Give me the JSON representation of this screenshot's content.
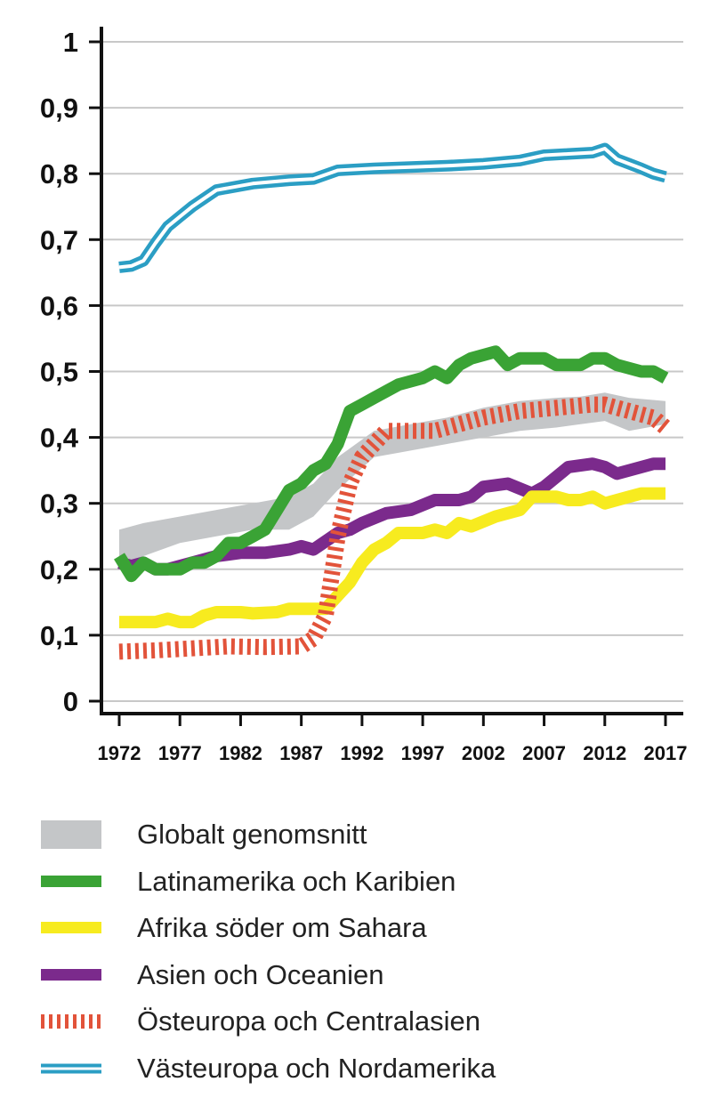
{
  "chart_data": {
    "type": "line",
    "title": "",
    "xlabel": "",
    "ylabel": "",
    "xlim": [
      1972,
      2017
    ],
    "ylim": [
      0,
      1
    ],
    "grid": "horizontal",
    "legend_position": "bottom",
    "y_ticks": [
      "0",
      "0,1",
      "0,2",
      "0,3",
      "0,4",
      "0,5",
      "0,6",
      "0,7",
      "0,8",
      "0,9",
      "1"
    ],
    "x_ticks": [
      "1972",
      "1977",
      "1982",
      "1987",
      "1992",
      "1997",
      "2002",
      "2007",
      "2012",
      "2017"
    ],
    "colors": {
      "global": "#c4c6c8",
      "latin": "#3aa335",
      "africa": "#f7eb1f",
      "asia": "#7b2a8c",
      "east": "#e2533a",
      "west": "#2b9ec4"
    },
    "band": {
      "name": "Globalt genomsnitt",
      "x": [
        1972,
        1974,
        1977,
        1980,
        1983,
        1986,
        1988,
        1990,
        1993,
        1996,
        1999,
        2002,
        2005,
        2008,
        2010,
        2012,
        2014,
        2017
      ],
      "lower": [
        0.2,
        0.22,
        0.24,
        0.25,
        0.26,
        0.26,
        0.28,
        0.32,
        0.37,
        0.38,
        0.39,
        0.4,
        0.41,
        0.415,
        0.42,
        0.425,
        0.41,
        0.42
      ],
      "upper": [
        0.26,
        0.27,
        0.28,
        0.29,
        0.3,
        0.31,
        0.33,
        0.37,
        0.41,
        0.42,
        0.43,
        0.445,
        0.455,
        0.46,
        0.462,
        0.468,
        0.46,
        0.455
      ]
    },
    "series": [
      {
        "name": "Latinamerika och Karibien",
        "style": "solid-thick",
        "x": [
          1972,
          1973,
          1974,
          1975,
          1977,
          1978,
          1979,
          1980,
          1981,
          1982,
          1983,
          1984,
          1985,
          1986,
          1987,
          1988,
          1989,
          1990,
          1991,
          1992,
          1993,
          1994,
          1995,
          1997,
          1998,
          1999,
          2000,
          2001,
          2003,
          2004,
          2005,
          2007,
          2008,
          2009,
          2010,
          2011,
          2012,
          2013,
          2015,
          2016,
          2017
        ],
        "values": [
          0.22,
          0.19,
          0.21,
          0.2,
          0.2,
          0.21,
          0.21,
          0.22,
          0.24,
          0.24,
          0.25,
          0.26,
          0.29,
          0.32,
          0.33,
          0.35,
          0.36,
          0.39,
          0.44,
          0.45,
          0.46,
          0.47,
          0.48,
          0.49,
          0.5,
          0.49,
          0.51,
          0.52,
          0.53,
          0.51,
          0.52,
          0.52,
          0.51,
          0.51,
          0.51,
          0.52,
          0.52,
          0.51,
          0.5,
          0.5,
          0.49
        ]
      },
      {
        "name": "Afrika söder om Sahara",
        "style": "solid-thick",
        "x": [
          1972,
          1974,
          1975,
          1976,
          1977,
          1978,
          1979,
          1980,
          1982,
          1983,
          1985,
          1986,
          1988,
          1989,
          1990,
          1991,
          1992,
          1993,
          1994,
          1995,
          1997,
          1998,
          1999,
          2000,
          2001,
          2003,
          2005,
          2006,
          2007,
          2008,
          2009,
          2010,
          2011,
          2012,
          2013,
          2014,
          2015,
          2016,
          2017
        ],
        "values": [
          0.12,
          0.12,
          0.12,
          0.125,
          0.12,
          0.12,
          0.13,
          0.135,
          0.135,
          0.133,
          0.135,
          0.14,
          0.14,
          0.14,
          0.16,
          0.18,
          0.21,
          0.23,
          0.24,
          0.255,
          0.255,
          0.26,
          0.255,
          0.27,
          0.265,
          0.28,
          0.29,
          0.31,
          0.31,
          0.31,
          0.305,
          0.305,
          0.31,
          0.3,
          0.305,
          0.31,
          0.315,
          0.315,
          0.315
        ]
      },
      {
        "name": "Asien och Oceanien",
        "style": "solid-thick",
        "x": [
          1972,
          1973,
          1974,
          1975,
          1976,
          1978,
          1980,
          1982,
          1984,
          1986,
          1987,
          1988,
          1990,
          1991,
          1992,
          1994,
          1996,
          1998,
          2000,
          2001,
          2002,
          2004,
          2006,
          2007,
          2008,
          2009,
          2011,
          2012,
          2013,
          2016,
          2017
        ],
        "values": [
          0.21,
          0.205,
          0.21,
          0.2,
          0.2,
          0.21,
          0.22,
          0.225,
          0.225,
          0.23,
          0.235,
          0.23,
          0.255,
          0.26,
          0.27,
          0.285,
          0.29,
          0.305,
          0.305,
          0.31,
          0.325,
          0.33,
          0.315,
          0.325,
          0.34,
          0.355,
          0.36,
          0.355,
          0.345,
          0.36,
          0.36
        ]
      },
      {
        "name": "Östeuropa och Centralasien",
        "style": "hatched",
        "x": [
          1972,
          1975,
          1978,
          1981,
          1984,
          1987,
          1988,
          1989,
          1990,
          1991,
          1992,
          1993,
          1994,
          1996,
          1998,
          2000,
          2002,
          2005,
          2008,
          2011,
          2012,
          2014,
          2016,
          2017
        ],
        "values": [
          0.075,
          0.077,
          0.08,
          0.083,
          0.082,
          0.083,
          0.095,
          0.13,
          0.25,
          0.33,
          0.37,
          0.39,
          0.41,
          0.41,
          0.41,
          0.42,
          0.43,
          0.44,
          0.445,
          0.45,
          0.45,
          0.44,
          0.43,
          0.415
        ]
      },
      {
        "name": "Västeuropa och Nordamerika",
        "style": "double",
        "x": [
          1972,
          1973,
          1974,
          1975,
          1976,
          1977,
          1978,
          1980,
          1983,
          1986,
          1988,
          1990,
          1993,
          1996,
          1999,
          2002,
          2005,
          2007,
          2009,
          2011,
          2012,
          2013,
          2014,
          2015,
          2016,
          2017
        ],
        "values": [
          0.658,
          0.66,
          0.668,
          0.695,
          0.72,
          0.735,
          0.75,
          0.775,
          0.785,
          0.79,
          0.792,
          0.805,
          0.808,
          0.81,
          0.812,
          0.815,
          0.82,
          0.828,
          0.83,
          0.832,
          0.838,
          0.822,
          0.815,
          0.808,
          0.8,
          0.795
        ]
      }
    ]
  },
  "legend": [
    {
      "key": "global",
      "label": "Globalt genomsnitt"
    },
    {
      "key": "latin",
      "label": "Latinamerika och Karibien"
    },
    {
      "key": "africa",
      "label": "Afrika söder om Sahara"
    },
    {
      "key": "asia",
      "label": "Asien och Oceanien"
    },
    {
      "key": "east",
      "label": "Östeuropa och Centralasien"
    },
    {
      "key": "west",
      "label": "Västeuropa och Nordamerika"
    }
  ]
}
